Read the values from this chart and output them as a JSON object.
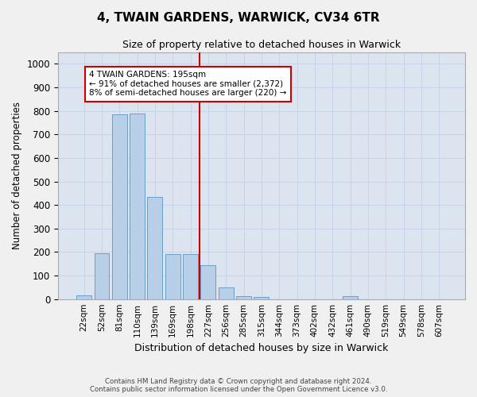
{
  "title": "4, TWAIN GARDENS, WARWICK, CV34 6TR",
  "subtitle": "Size of property relative to detached houses in Warwick",
  "xlabel": "Distribution of detached houses by size in Warwick",
  "ylabel": "Number of detached properties",
  "categories": [
    "22sqm",
    "52sqm",
    "81sqm",
    "110sqm",
    "139sqm",
    "169sqm",
    "198sqm",
    "227sqm",
    "256sqm",
    "285sqm",
    "315sqm",
    "344sqm",
    "373sqm",
    "402sqm",
    "432sqm",
    "461sqm",
    "490sqm",
    "519sqm",
    "549sqm",
    "578sqm",
    "607sqm"
  ],
  "values": [
    15,
    194,
    785,
    790,
    435,
    190,
    192,
    143,
    48,
    14,
    10,
    0,
    0,
    0,
    0,
    12,
    0,
    0,
    0,
    0,
    0
  ],
  "bar_color": "#b8cfe8",
  "bar_edge_color": "#6a9fc8",
  "vline_color": "#cc0000",
  "vline_x": 6.5,
  "annotation_lines": [
    "4 TWAIN GARDENS: 195sqm",
    "← 91% of detached houses are smaller (2,372)",
    "8% of semi-detached houses are larger (220) →"
  ],
  "annotation_box_color": "#ffffff",
  "annotation_box_edge_color": "#cc0000",
  "ylim": [
    0,
    1050
  ],
  "yticks": [
    0,
    100,
    200,
    300,
    400,
    500,
    600,
    700,
    800,
    900,
    1000
  ],
  "grid_color": "#c8d4e8",
  "background_color": "#dce4f0",
  "fig_background": "#f0f0f0",
  "footer_line1": "Contains HM Land Registry data © Crown copyright and database right 2024.",
  "footer_line2": "Contains public sector information licensed under the Open Government Licence v3.0."
}
